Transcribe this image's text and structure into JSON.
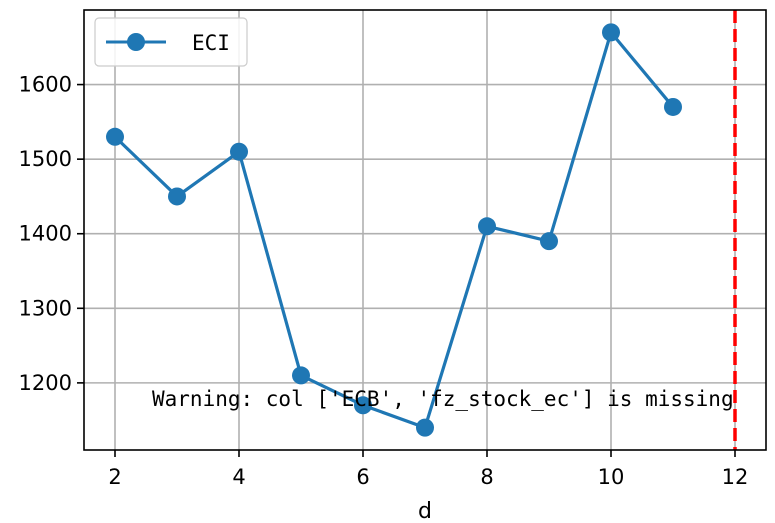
{
  "chart_data": {
    "type": "line",
    "xlabel": "d",
    "ylabel": "",
    "xlim": [
      1.5,
      12.5
    ],
    "ylim": [
      1110,
      1700
    ],
    "x_ticks": [
      2,
      4,
      6,
      8,
      10,
      12
    ],
    "y_ticks": [
      1200,
      1300,
      1400,
      1500,
      1600
    ],
    "grid": true,
    "legend_position": "upper-left",
    "series": [
      {
        "name": "ECI",
        "color": "#1f77b4",
        "marker": "circle",
        "x": [
          2,
          3,
          4,
          5,
          6,
          7,
          8,
          9,
          10,
          11
        ],
        "values": [
          1530,
          1450,
          1510,
          1210,
          1170,
          1140,
          1410,
          1390,
          1670,
          1570
        ]
      }
    ],
    "reference_line": {
      "axis": "x",
      "value": 12,
      "color": "#ff0000",
      "style": "dashed"
    },
    "annotation": "Warning: col ['ECB', 'fz_stock_ec'] is missing"
  }
}
